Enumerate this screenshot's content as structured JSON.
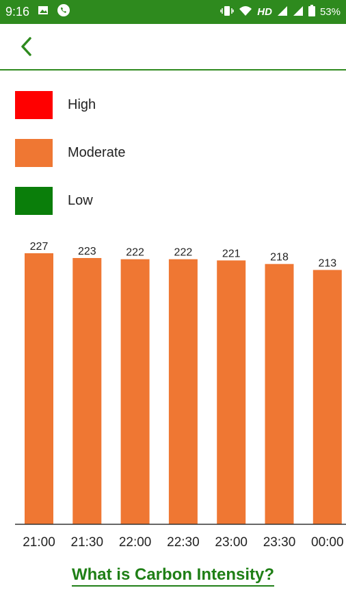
{
  "status_bar": {
    "time": "9:16",
    "network": "HD",
    "battery": "53%",
    "icons": [
      "image-icon",
      "whatsapp-icon",
      "vibrate-icon",
      "wifi-icon",
      "signal-icon",
      "signal-icon-2",
      "battery-icon"
    ]
  },
  "header": {
    "back_icon": "chevron-left-icon"
  },
  "legend": {
    "items": [
      {
        "label": "High",
        "color": "#ff0000"
      },
      {
        "label": "Moderate",
        "color": "#ef7733"
      },
      {
        "label": "Low",
        "color": "#0a7e0a"
      }
    ]
  },
  "chart_data": {
    "type": "bar",
    "categories": [
      "21:00",
      "21:30",
      "22:00",
      "22:30",
      "23:00",
      "23:30",
      "00:00"
    ],
    "values": [
      227,
      223,
      222,
      222,
      221,
      218,
      213
    ],
    "series_color": "#ef7733",
    "ylim": [
      0,
      227
    ],
    "title": "",
    "xlabel": "",
    "ylabel": ""
  },
  "footer": {
    "info_link": "What is Carbon Intensity?"
  }
}
